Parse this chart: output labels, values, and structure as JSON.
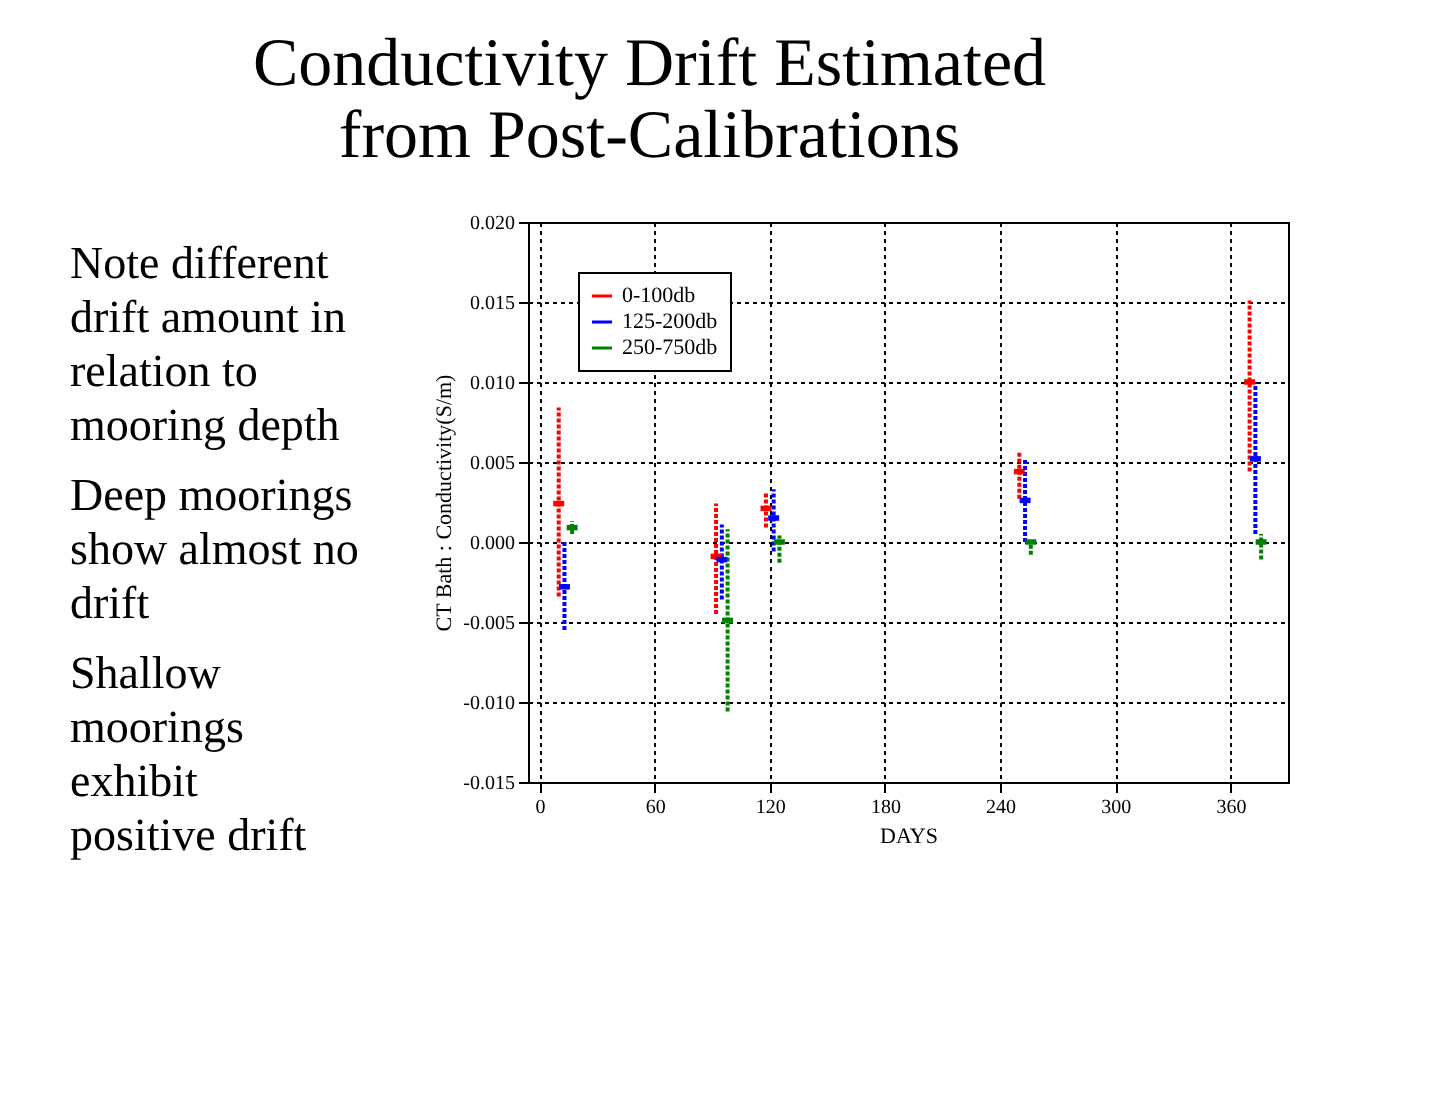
{
  "chart_data": {
    "type": "scatter",
    "title": "Conductivity Drift Estimated from Post-Calibrations",
    "xlabel": "DAYS",
    "ylabel": "CT Bath : Conductivity(S/m)",
    "annotations": [
      "Note different drift amount in relation to mooring depth",
      "Deep moorings show almost no drift",
      "Shallow moorings exhibit positive drift"
    ],
    "xlim": [
      -6,
      390
    ],
    "xticks": [
      0,
      60,
      120,
      180,
      240,
      300,
      360
    ],
    "ylim": [
      -0.015,
      0.02
    ],
    "yticks": [
      {
        "value": -0.015,
        "label": "-0.015"
      },
      {
        "value": -0.01,
        "label": "-0.010"
      },
      {
        "value": -0.005,
        "label": "-0.005"
      },
      {
        "value": 0,
        "label": "0.000"
      },
      {
        "value": 0.005,
        "label": "0.005"
      },
      {
        "value": 0.01,
        "label": "0.010"
      },
      {
        "value": 0.015,
        "label": "0.015"
      },
      {
        "value": 0.02,
        "label": "0.020"
      }
    ],
    "grid": true,
    "legend": "top left",
    "series": [
      {
        "name": "0-100db",
        "color": "#ff0000",
        "x": [
          10,
          92,
          118,
          250,
          370
        ],
        "values": [
          0.0024,
          -0.0009,
          0.0021,
          0.0044,
          0.01
        ],
        "errors": [
          [
            -0.0034,
            0.0084
          ],
          [
            -0.0045,
            0.0024
          ],
          [
            0.0009,
            0.0031
          ],
          [
            0.0027,
            0.0056
          ],
          [
            0.0044,
            0.0151
          ]
        ]
      },
      {
        "name": "125-200db",
        "color": "#0000ff",
        "x": [
          13,
          95,
          122,
          253,
          373
        ],
        "values": [
          -0.0028,
          -0.0011,
          0.0015,
          0.0026,
          0.0052
        ],
        "errors": [
          [
            -0.0055,
            0.0
          ],
          [
            -0.0036,
            0.0011
          ],
          [
            -0.0006,
            0.0033
          ],
          [
            0.0,
            0.0052
          ],
          [
            0.0005,
            0.01
          ]
        ]
      },
      {
        "name": "250-750db",
        "color": "#008000",
        "x": [
          17,
          98,
          125,
          256,
          376
        ],
        "values": [
          0.0009,
          -0.0049,
          0.0,
          0.0,
          0.0
        ],
        "errors": [
          [
            0.0005,
            0.0013
          ],
          [
            -0.0106,
            0.0008
          ],
          [
            -0.0013,
            0.0004
          ],
          [
            -0.0008,
            0.0
          ],
          [
            -0.0011,
            0.0005
          ]
        ]
      }
    ]
  }
}
